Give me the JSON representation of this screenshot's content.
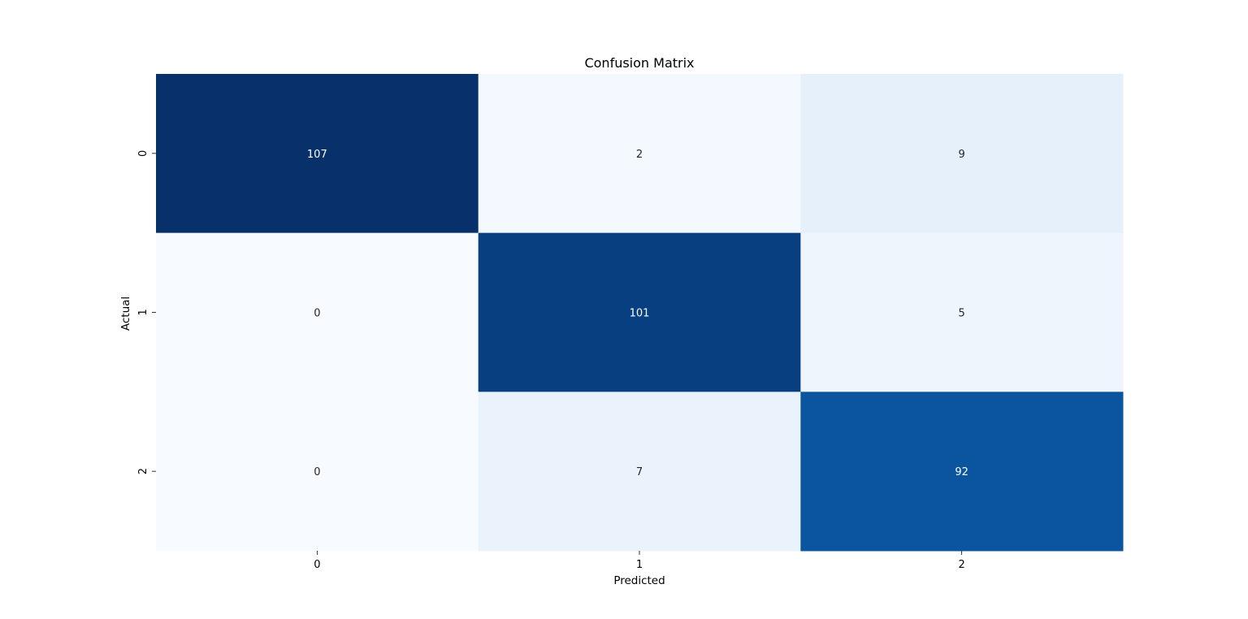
{
  "chart_data": {
    "type": "heatmap",
    "title": "Confusion Matrix",
    "xlabel": "Predicted",
    "ylabel": "Actual",
    "x_categories": [
      "0",
      "1",
      "2"
    ],
    "y_categories": [
      "0",
      "1",
      "2"
    ],
    "values": [
      [
        107,
        2,
        9
      ],
      [
        0,
        101,
        5
      ],
      [
        0,
        7,
        92
      ]
    ],
    "colormap": "Blues",
    "colorbar": false,
    "annotations": true,
    "grid": false
  }
}
